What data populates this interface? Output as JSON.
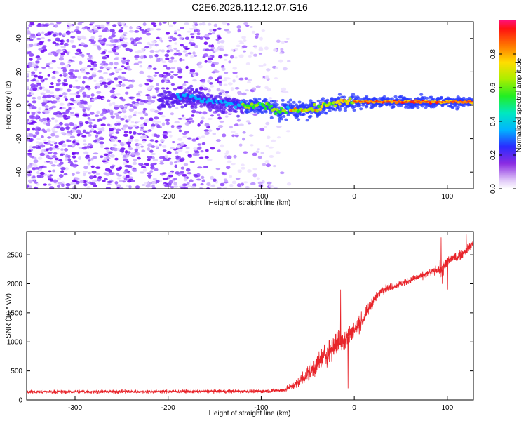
{
  "chart_data": [
    {
      "type": "heatmap",
      "title": "C2E6.2026.112.12.07.G16",
      "xlabel": "Height of straight line (km)",
      "ylabel": "Frequency (Hz)",
      "xlim": [
        -352,
        128
      ],
      "ylim": [
        -50,
        50
      ],
      "x_ticks": [
        -300,
        -200,
        -100,
        0,
        100
      ],
      "y_ticks": [
        -40,
        -20,
        0,
        20,
        40
      ],
      "ridge": {
        "description_points": [
          {
            "x": -205,
            "y": 3
          },
          {
            "x": -180,
            "y": 5
          },
          {
            "x": -150,
            "y": 2
          },
          {
            "x": -120,
            "y": 0
          },
          {
            "x": -90,
            "y": -1
          },
          {
            "x": -80,
            "y": -4
          },
          {
            "x": -70,
            "y": -2
          },
          {
            "x": -55,
            "y": -3
          },
          {
            "x": -40,
            "y": -2
          },
          {
            "x": -25,
            "y": 1
          },
          {
            "x": -10,
            "y": 2
          },
          {
            "x": 0,
            "y": 2
          },
          {
            "x": 50,
            "y": 2
          },
          {
            "x": 100,
            "y": 2
          },
          {
            "x": 128,
            "y": 2
          }
        ],
        "peak_amplitude": 1.0
      },
      "noise_region": {
        "x_from": -352,
        "x_to": -70,
        "f_range": [
          -50,
          50
        ]
      },
      "colorbar": {
        "label": "Normalized spectral amplitude",
        "range": [
          0,
          1
        ],
        "ticks": [
          "0.0",
          "0.2",
          "0.4",
          "0.6",
          "0.8"
        ],
        "tick_values": [
          0.0,
          0.2,
          0.4,
          0.6,
          0.8
        ]
      }
    },
    {
      "type": "line",
      "xlabel": "Height of straight line (km)",
      "ylabel": "SNR (10 * v/v)",
      "xlim": [
        -352,
        128
      ],
      "ylim": [
        0,
        2900
      ],
      "x_ticks": [
        -300,
        -200,
        -100,
        0,
        100
      ],
      "y_ticks": [
        0,
        500,
        1000,
        1500,
        2000,
        2500
      ],
      "line_color": "#e8242a",
      "series": [
        {
          "name": "SNR",
          "envelope": [
            {
              "x": -352,
              "mean": 140,
              "noise": 50
            },
            {
              "x": -100,
              "mean": 150,
              "noise": 50
            },
            {
              "x": -75,
              "mean": 170,
              "noise": 60
            },
            {
              "x": -60,
              "mean": 300,
              "noise": 150
            },
            {
              "x": -50,
              "mean": 450,
              "noise": 250
            },
            {
              "x": -40,
              "mean": 600,
              "noise": 300
            },
            {
              "x": -30,
              "mean": 800,
              "noise": 350
            },
            {
              "x": -20,
              "mean": 950,
              "noise": 350
            },
            {
              "x": -10,
              "mean": 1050,
              "noise": 350
            },
            {
              "x": 0,
              "mean": 1200,
              "noise": 250
            },
            {
              "x": 10,
              "mean": 1400,
              "noise": 200
            },
            {
              "x": 20,
              "mean": 1700,
              "noise": 150
            },
            {
              "x": 30,
              "mean": 1900,
              "noise": 100
            },
            {
              "x": 50,
              "mean": 2000,
              "noise": 100
            },
            {
              "x": 75,
              "mean": 2150,
              "noise": 100
            },
            {
              "x": 90,
              "mean": 2250,
              "noise": 120
            },
            {
              "x": 95,
              "mean": 2200,
              "noise": 300
            },
            {
              "x": 100,
              "mean": 2400,
              "noise": 150
            },
            {
              "x": 115,
              "mean": 2500,
              "noise": 120
            },
            {
              "x": 128,
              "mean": 2700,
              "noise": 120
            }
          ],
          "spikes": [
            {
              "x": -15,
              "y": 1900
            },
            {
              "x": -7,
              "y": 200
            },
            {
              "x": 93,
              "y": 2800
            },
            {
              "x": 100,
              "y": 1900
            },
            {
              "x": 120,
              "y": 2850
            }
          ]
        }
      ]
    }
  ]
}
